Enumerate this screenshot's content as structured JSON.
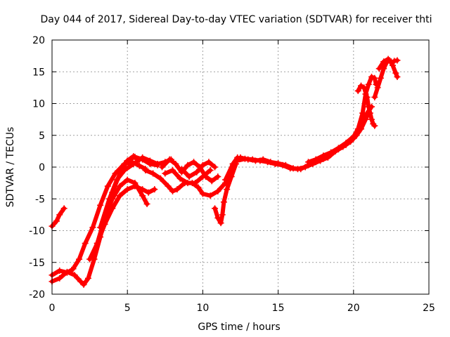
{
  "chart_data": {
    "type": "scatter",
    "title": "Day 044 of 2017, Sidereal Day-to-day VTEC variation (SDTVAR) for receiver thti",
    "xlabel": "GPS time / hours",
    "ylabel": "SDTVAR / TECUs",
    "xlim": [
      0,
      25
    ],
    "ylim": [
      -20,
      20
    ],
    "xticks": [
      0,
      5,
      10,
      15,
      20,
      25
    ],
    "yticks": [
      -20,
      -15,
      -10,
      -5,
      0,
      5,
      10,
      15,
      20
    ],
    "grid": true,
    "marker": "+",
    "color": "#ff0000",
    "series": [
      {
        "name": "trace-1",
        "points": [
          [
            0.0,
            -9.3
          ],
          [
            0.3,
            -8.5
          ],
          [
            0.5,
            -7.5
          ],
          [
            0.8,
            -6.5
          ]
        ]
      },
      {
        "name": "trace-2",
        "points": [
          [
            0.0,
            -17.0
          ],
          [
            0.5,
            -16.3
          ],
          [
            1.0,
            -16.6
          ],
          [
            1.3,
            -16.2
          ]
        ]
      },
      {
        "name": "trace-3",
        "points": [
          [
            0.0,
            -18.0
          ],
          [
            0.5,
            -17.5
          ],
          [
            1.0,
            -16.5
          ],
          [
            1.5,
            -17.0
          ],
          [
            1.9,
            -18.0
          ],
          [
            2.1,
            -18.5
          ],
          [
            2.4,
            -17.5
          ],
          [
            2.8,
            -14.5
          ],
          [
            3.2,
            -11.0
          ],
          [
            3.6,
            -7.5
          ],
          [
            4.0,
            -4.0
          ],
          [
            4.5,
            -1.0
          ],
          [
            5.0,
            1.0
          ],
          [
            5.4,
            1.7
          ],
          [
            5.8,
            1.2
          ]
        ]
      },
      {
        "name": "trace-4",
        "points": [
          [
            1.4,
            -16.0
          ],
          [
            1.8,
            -14.5
          ],
          [
            2.2,
            -12.0
          ],
          [
            2.7,
            -9.5
          ],
          [
            3.2,
            -6.0
          ],
          [
            3.7,
            -3.0
          ],
          [
            4.2,
            -1.0
          ],
          [
            4.8,
            0.5
          ],
          [
            5.3,
            0.8
          ],
          [
            5.8,
            0.2
          ],
          [
            6.2,
            -0.3
          ]
        ]
      },
      {
        "name": "trace-5",
        "points": [
          [
            2.5,
            -14.5
          ],
          [
            3.0,
            -12.0
          ],
          [
            3.5,
            -9.0
          ],
          [
            4.0,
            -6.5
          ],
          [
            4.5,
            -4.5
          ],
          [
            5.0,
            -3.5
          ],
          [
            5.5,
            -3.0
          ],
          [
            6.0,
            -3.5
          ],
          [
            6.4,
            -4.0
          ],
          [
            6.8,
            -3.5
          ]
        ]
      },
      {
        "name": "trace-6",
        "points": [
          [
            3.0,
            -12.0
          ],
          [
            3.5,
            -8.0
          ],
          [
            4.0,
            -5.0
          ],
          [
            4.5,
            -3.0
          ],
          [
            5.0,
            -2.0
          ],
          [
            5.5,
            -2.5
          ],
          [
            6.0,
            -4.5
          ],
          [
            6.3,
            -5.8
          ]
        ]
      },
      {
        "name": "trace-7",
        "points": [
          [
            3.2,
            -9.5
          ],
          [
            3.8,
            -5.0
          ],
          [
            4.3,
            -2.0
          ],
          [
            4.8,
            -0.5
          ],
          [
            5.4,
            0.5
          ],
          [
            6.0,
            1.5
          ],
          [
            6.5,
            1.0
          ],
          [
            7.0,
            0.5
          ],
          [
            7.5,
            0.8
          ],
          [
            7.9,
            1.2
          ]
        ]
      },
      {
        "name": "trace-8",
        "points": [
          [
            4.5,
            -0.5
          ],
          [
            5.0,
            1.0
          ],
          [
            5.5,
            1.6
          ],
          [
            6.0,
            1.2
          ],
          [
            6.5,
            0.5
          ],
          [
            7.0,
            0.3
          ]
        ]
      },
      {
        "name": "trace-9",
        "points": [
          [
            6.2,
            -0.5
          ],
          [
            6.7,
            -1.0
          ],
          [
            7.2,
            -1.8
          ],
          [
            7.7,
            -3.0
          ],
          [
            8.0,
            -3.8
          ],
          [
            8.3,
            -3.5
          ],
          [
            8.8,
            -2.5
          ],
          [
            9.3,
            -2.5
          ],
          [
            9.7,
            -3.2
          ],
          [
            10.0,
            -4.2
          ],
          [
            10.5,
            -4.5
          ],
          [
            11.0,
            -3.8
          ],
          [
            11.5,
            -2.5
          ],
          [
            12.0,
            0.5
          ],
          [
            12.3,
            1.5
          ]
        ]
      },
      {
        "name": "trace-10",
        "points": [
          [
            7.3,
            0.0
          ],
          [
            7.8,
            1.2
          ],
          [
            8.2,
            0.5
          ],
          [
            8.6,
            -0.8
          ],
          [
            9.0,
            0.3
          ],
          [
            9.4,
            0.8
          ],
          [
            9.8,
            0.0
          ],
          [
            10.2,
            -1.5
          ],
          [
            10.6,
            -2.2
          ],
          [
            11.0,
            -1.5
          ]
        ]
      },
      {
        "name": "trace-11",
        "points": [
          [
            8.6,
            -0.3
          ],
          [
            9.1,
            -1.5
          ],
          [
            9.6,
            -0.8
          ],
          [
            10.0,
            0.3
          ],
          [
            10.4,
            0.8
          ],
          [
            10.8,
            0.0
          ]
        ]
      },
      {
        "name": "trace-12",
        "points": [
          [
            7.5,
            -1.0
          ],
          [
            8.0,
            -0.5
          ],
          [
            8.5,
            -1.8
          ],
          [
            9.0,
            -2.5
          ],
          [
            9.5,
            -2.5
          ],
          [
            10.0,
            -1.5
          ],
          [
            10.5,
            -0.5
          ]
        ]
      },
      {
        "name": "trace-13",
        "points": [
          [
            10.8,
            -6.5
          ],
          [
            11.0,
            -8.0
          ],
          [
            11.2,
            -8.8
          ],
          [
            11.3,
            -7.5
          ],
          [
            11.4,
            -5.5
          ],
          [
            11.6,
            -3.5
          ],
          [
            11.9,
            -1.5
          ],
          [
            12.2,
            0.5
          ]
        ]
      },
      {
        "name": "trace-14",
        "points": [
          [
            11.5,
            -2.0
          ],
          [
            12.0,
            0.5
          ],
          [
            12.5,
            1.5
          ],
          [
            13.0,
            1.2
          ],
          [
            13.5,
            1.0
          ],
          [
            14.0,
            1.2
          ],
          [
            14.5,
            0.8
          ],
          [
            15.0,
            0.6
          ],
          [
            15.5,
            0.3
          ],
          [
            16.0,
            -0.2
          ],
          [
            16.5,
            -0.3
          ],
          [
            17.0,
            0.3
          ],
          [
            17.5,
            0.8
          ],
          [
            18.0,
            1.3
          ],
          [
            18.5,
            2.0
          ],
          [
            19.0,
            2.8
          ],
          [
            19.5,
            3.5
          ],
          [
            20.0,
            4.5
          ],
          [
            20.3,
            5.5
          ],
          [
            20.6,
            7.0
          ],
          [
            20.9,
            8.5
          ],
          [
            21.2,
            9.5
          ]
        ]
      },
      {
        "name": "trace-15",
        "points": [
          [
            12.3,
            1.0
          ],
          [
            12.8,
            1.3
          ],
          [
            13.3,
            1.2
          ],
          [
            13.8,
            1.0
          ],
          [
            14.3,
            0.8
          ],
          [
            14.8,
            0.5
          ],
          [
            15.3,
            0.3
          ],
          [
            15.8,
            -0.2
          ],
          [
            16.3,
            -0.3
          ],
          [
            16.8,
            0.0
          ],
          [
            17.3,
            0.5
          ],
          [
            17.8,
            1.0
          ],
          [
            18.3,
            1.5
          ],
          [
            18.8,
            2.5
          ],
          [
            19.3,
            3.2
          ],
          [
            19.8,
            4.0
          ],
          [
            20.2,
            5.0
          ],
          [
            20.5,
            6.0
          ],
          [
            20.8,
            7.5
          ],
          [
            21.0,
            8.5
          ]
        ]
      },
      {
        "name": "trace-16",
        "points": [
          [
            17.0,
            0.8
          ],
          [
            17.5,
            1.2
          ],
          [
            18.0,
            1.8
          ],
          [
            18.5,
            2.3
          ],
          [
            19.0,
            3.0
          ],
          [
            19.5,
            3.8
          ],
          [
            20.0,
            4.8
          ],
          [
            20.3,
            6.0
          ],
          [
            20.6,
            8.5
          ],
          [
            20.8,
            11.5
          ],
          [
            21.0,
            13.0
          ],
          [
            21.2,
            14.2
          ],
          [
            21.4,
            14.0
          ],
          [
            21.5,
            13.0
          ]
        ]
      },
      {
        "name": "trace-17",
        "points": [
          [
            20.3,
            12.0
          ],
          [
            20.5,
            12.8
          ],
          [
            20.7,
            12.5
          ],
          [
            20.9,
            11.0
          ],
          [
            21.0,
            9.5
          ],
          [
            21.1,
            8.5
          ],
          [
            21.2,
            7.5
          ],
          [
            21.3,
            6.8
          ],
          [
            21.4,
            6.5
          ]
        ]
      },
      {
        "name": "trace-18",
        "points": [
          [
            21.4,
            11.0
          ],
          [
            21.6,
            12.5
          ],
          [
            21.8,
            14.0
          ],
          [
            22.0,
            15.5
          ],
          [
            22.2,
            16.5
          ],
          [
            22.4,
            16.8
          ],
          [
            22.6,
            16.0
          ],
          [
            22.8,
            14.8
          ],
          [
            22.9,
            14.2
          ]
        ]
      },
      {
        "name": "trace-19",
        "points": [
          [
            21.7,
            15.5
          ],
          [
            22.0,
            16.6
          ],
          [
            22.3,
            17.0
          ],
          [
            22.5,
            16.6
          ]
        ]
      },
      {
        "name": "trace-20",
        "points": [
          [
            22.7,
            16.7
          ],
          [
            22.9,
            16.8
          ]
        ]
      }
    ]
  }
}
